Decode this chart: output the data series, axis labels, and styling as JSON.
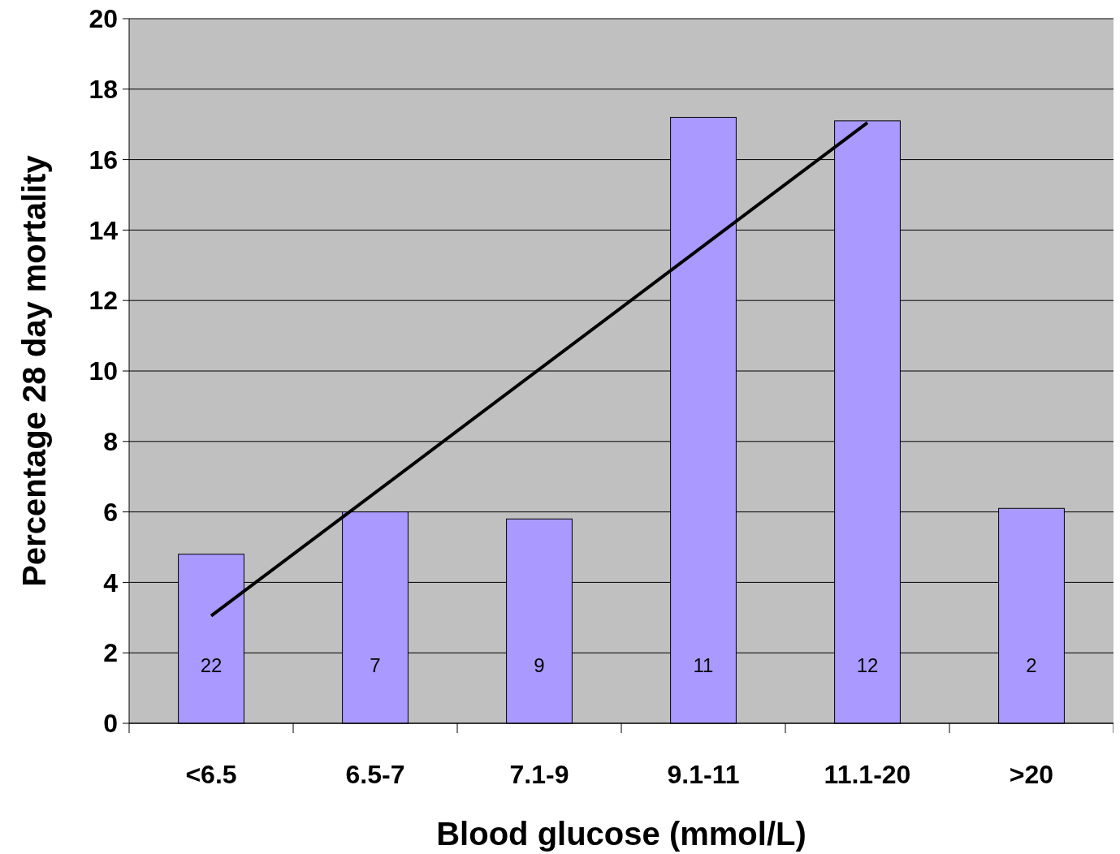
{
  "chart_data": {
    "type": "bar",
    "xlabel": "Blood glucose (mmol/L)",
    "ylabel": "Percentage 28 day mortality",
    "categories": [
      "<6.5",
      "6.5-7",
      "7.1-9",
      "9.1-11",
      "11.1-20",
      ">20"
    ],
    "series": [
      {
        "color": "#aa99ff",
        "values": [
          4.8,
          6.0,
          5.8,
          17.2,
          17.1,
          6.1
        ]
      },
      {
        "type": "line",
        "color": "#000000",
        "x": [
          "<6.5",
          "11.1-20"
        ],
        "values": [
          3.05,
          17.05
        ]
      }
    ],
    "annotations": [
      "22",
      "7",
      "9",
      "11",
      "12",
      "2"
    ],
    "ylim": [
      0,
      20
    ],
    "yticks": [
      0,
      2,
      4,
      6,
      8,
      10,
      12,
      14,
      16,
      18,
      20
    ],
    "grid": "y"
  }
}
